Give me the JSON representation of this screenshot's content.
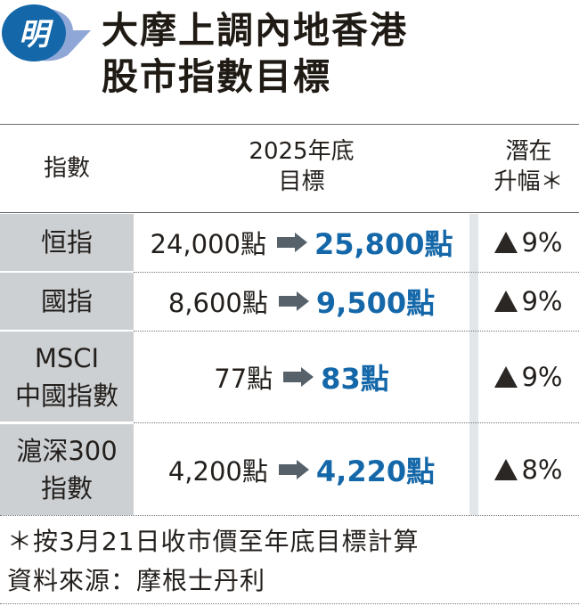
{
  "logo": {
    "text": "明",
    "color": "#1467a8"
  },
  "title": {
    "line1": "大摩上調內地香港",
    "line2": "股市指數目標"
  },
  "header": {
    "col_index": "指數",
    "col_target_1": "2025年底",
    "col_target_2": "目標",
    "col_upside_1": "潛在",
    "col_upside_2": "升幅＊"
  },
  "rows": [
    {
      "name_1": "恒指",
      "name_2": "",
      "current": "24,000點",
      "target": "25,800點",
      "upside": "9%"
    },
    {
      "name_1": "國指",
      "name_2": "",
      "current": "8,600點",
      "target": "9,500點",
      "upside": "9%"
    },
    {
      "name_1": "MSCI",
      "name_2": "中國指數",
      "current": "77點",
      "target": "83點",
      "upside": "9%"
    },
    {
      "name_1": "滬深300",
      "name_2": "指數",
      "current": "4,200點",
      "target": "4,220點",
      "upside": "8%"
    }
  ],
  "footer": {
    "note": "＊按3月21日收市價至年底目標計算",
    "source": "資料來源：摩根士丹利"
  },
  "colors": {
    "accent": "#1467a8",
    "label_bg": "#ccd0d3",
    "arrow": "#56616a"
  }
}
